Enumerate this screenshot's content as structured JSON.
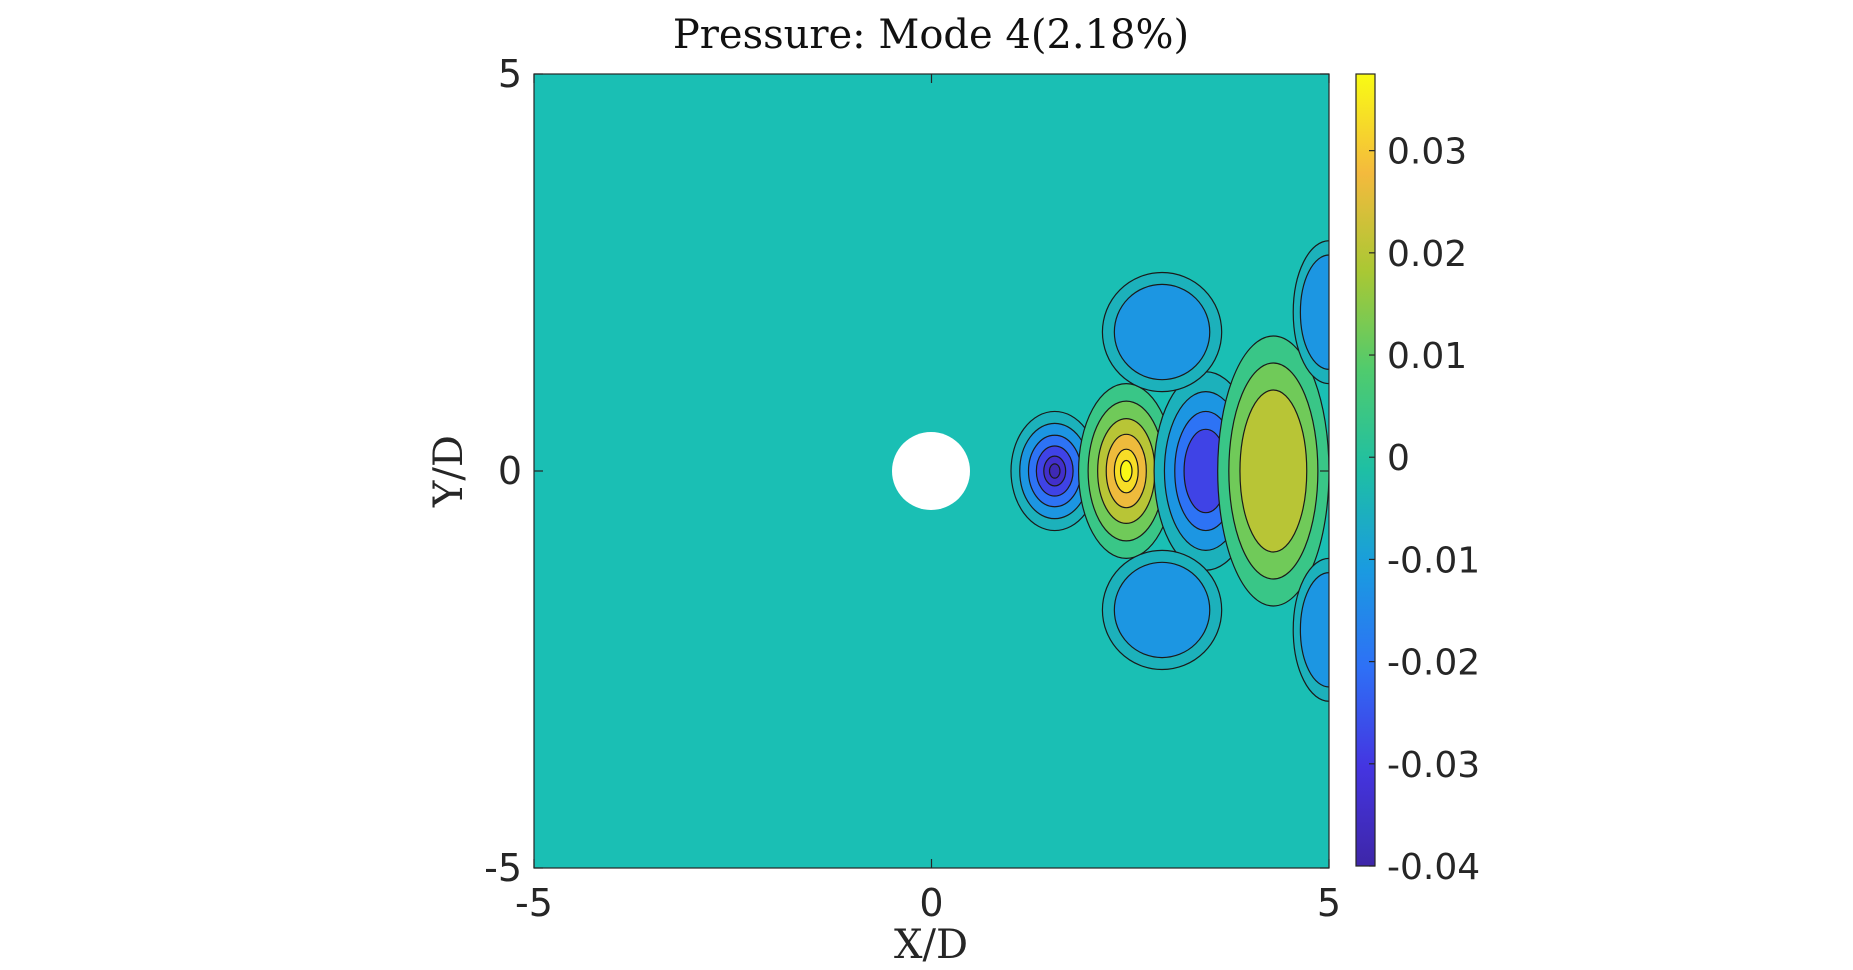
{
  "chart_data": {
    "type": "heatmap",
    "subtype": "filled-contour",
    "title": "Pressure: Mode 4(2.18%)",
    "xlabel": "X/D",
    "ylabel": "Y/D",
    "xlim": [
      -5,
      5
    ],
    "ylim": [
      -5,
      5
    ],
    "xticks": [
      "-5",
      "0",
      "5"
    ],
    "yticks": [
      "-5",
      "0",
      "5"
    ],
    "colorbar": {
      "clim": [
        -0.04,
        0.0375
      ],
      "ticks": [
        "0.03",
        "0.02",
        "0.01",
        "0",
        "-0.01",
        "-0.02",
        "-0.03",
        "-0.04"
      ],
      "colormap": "parula"
    },
    "background_value": 0,
    "cylinder": {
      "x": 0,
      "y": 0,
      "diameter": 1
    },
    "wake_features": [
      {
        "x": 1.55,
        "y": 0,
        "value": -0.038,
        "sign": "negative"
      },
      {
        "x": 2.45,
        "y": 0,
        "value": 0.037,
        "sign": "positive"
      },
      {
        "x": 3.45,
        "y": 0,
        "value": -0.031,
        "sign": "negative"
      },
      {
        "x": 4.3,
        "y": 0,
        "value": 0.023,
        "sign": "positive"
      },
      {
        "x": 2.9,
        "y": 1.75,
        "value": -0.012,
        "sign": "negative"
      },
      {
        "x": 2.9,
        "y": -1.75,
        "value": -0.012,
        "sign": "negative"
      },
      {
        "x": 5.0,
        "y": 2.0,
        "value": -0.012,
        "sign": "negative"
      },
      {
        "x": 5.0,
        "y": -2.0,
        "value": -0.012,
        "sign": "negative"
      }
    ]
  }
}
